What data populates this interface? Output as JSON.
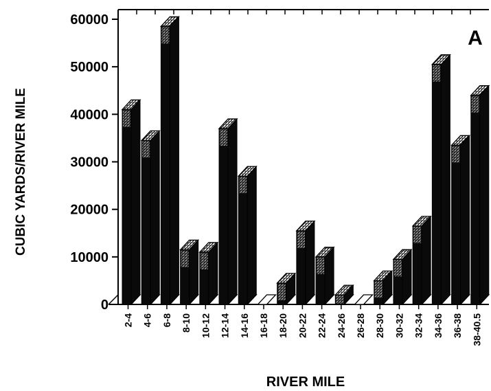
{
  "chart_data": {
    "type": "bar",
    "title": "",
    "panel_label": "A",
    "xlabel": "RIVER MILE",
    "ylabel": "CUBIC YARDS/RIVER MILE",
    "ylim": [
      0,
      60000
    ],
    "yticks": [
      "0",
      "10000",
      "20000",
      "30000",
      "40000",
      "50000",
      "60000"
    ],
    "grid": false,
    "categories": [
      "2-4",
      "4-6",
      "6-8",
      "8-10",
      "10-12",
      "12-14",
      "14-16",
      "16-18",
      "18-20",
      "20-22",
      "22-24",
      "24-26",
      "26-28",
      "28-30",
      "30-32",
      "32-34",
      "34-36",
      "36-38",
      "38-40.5"
    ],
    "values": [
      41000,
      34500,
      58500,
      11500,
      11000,
      37000,
      27000,
      0,
      4500,
      15500,
      10000,
      2000,
      0,
      5000,
      9500,
      16500,
      50500,
      33500,
      44000
    ],
    "colors": {
      "bar_front": "#0a0a0a",
      "bar_top": "#9a9a9a",
      "floor": "#ffffff",
      "ink": "#000000"
    }
  }
}
